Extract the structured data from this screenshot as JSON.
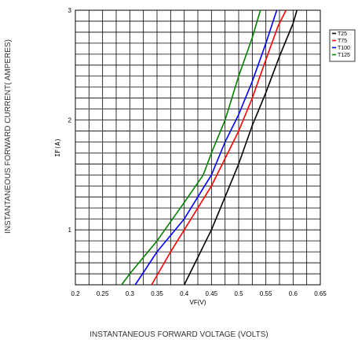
{
  "chart_data": {
    "type": "line",
    "xlabel": "VF(V)",
    "ylabel": "IF(A)",
    "outer_xlabel": "INSTANTANEOUS FORWARD VOLTAGE (VOLTS)",
    "outer_ylabel": "INSTANTANEOUS FORWARD CURRENT( AMPERES)",
    "xlim": [
      0.2,
      0.65
    ],
    "ylim": [
      0.5,
      3
    ],
    "xticks": [
      "0.2",
      "0.25",
      "0.3",
      "0.35",
      "0.4",
      "0.45",
      "0.5",
      "0.55",
      "0.6",
      "0.65"
    ],
    "yticks": [
      "1",
      "2",
      "3"
    ],
    "grid": true,
    "legend_position": "top-right",
    "series": [
      {
        "name": "T25",
        "color": "#000000",
        "x": [
          0.4,
          0.425,
          0.45,
          0.475,
          0.5,
          0.525,
          0.55,
          0.575,
          0.6,
          0.607
        ],
        "y": [
          0.5,
          0.75,
          1.0,
          1.3,
          1.6,
          1.95,
          2.25,
          2.58,
          2.88,
          3.0
        ]
      },
      {
        "name": "T75",
        "color": "#ff0000",
        "x": [
          0.34,
          0.375,
          0.4,
          0.425,
          0.45,
          0.475,
          0.5,
          0.525,
          0.55,
          0.572,
          0.587
        ],
        "y": [
          0.5,
          0.8,
          1.0,
          1.2,
          1.4,
          1.65,
          1.9,
          2.2,
          2.55,
          2.85,
          3.0
        ]
      },
      {
        "name": "T100",
        "color": "#0000ff",
        "x": [
          0.31,
          0.35,
          0.4,
          0.45,
          0.475,
          0.5,
          0.525,
          0.55,
          0.57
        ],
        "y": [
          0.5,
          0.8,
          1.1,
          1.5,
          1.8,
          2.05,
          2.35,
          2.7,
          3.0
        ]
      },
      {
        "name": "T125",
        "color": "#008000",
        "x": [
          0.285,
          0.3,
          0.35,
          0.4,
          0.435,
          0.45,
          0.475,
          0.5,
          0.525,
          0.54
        ],
        "y": [
          0.5,
          0.6,
          0.9,
          1.25,
          1.5,
          1.7,
          2.0,
          2.4,
          2.75,
          3.0
        ]
      }
    ]
  }
}
